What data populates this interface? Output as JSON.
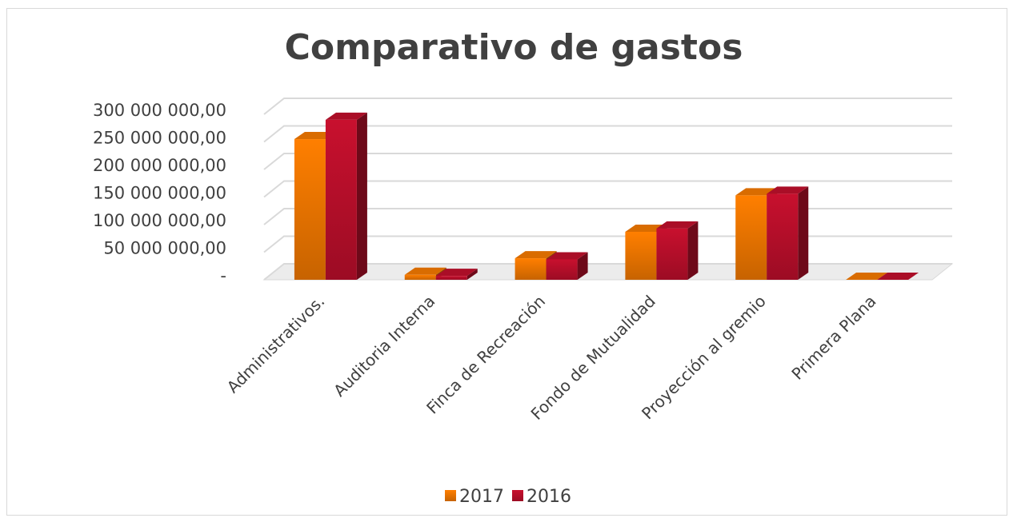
{
  "chart_data": {
    "type": "bar3d",
    "title": "Comparativo de gastos",
    "categories": [
      "Administrativos.",
      "Auditoria Interna",
      "Finca de Recreación",
      "Fondo de Mutualidad",
      "Proyección al gremio",
      "Primera Plana"
    ],
    "series": [
      {
        "name": "2017",
        "color": "#ff7f00",
        "values": [
          255000000,
          9000000,
          39000000,
          87000000,
          153000000,
          0
        ]
      },
      {
        "name": "2016",
        "color": "#c8102e",
        "values": [
          290000000,
          7000000,
          37000000,
          93000000,
          156000000,
          0
        ]
      }
    ],
    "ylim": [
      0,
      300000000
    ],
    "yticks": [
      {
        "value": 0,
        "label": "-"
      },
      {
        "value": 50000000,
        "label": "50 000 000,00"
      },
      {
        "value": 100000000,
        "label": "100 000 000,00"
      },
      {
        "value": 150000000,
        "label": "150 000 000,00"
      },
      {
        "value": 200000000,
        "label": "200 000 000,00"
      },
      {
        "value": 250000000,
        "label": "250 000 000,00"
      },
      {
        "value": 300000000,
        "label": "300 000 000,00"
      }
    ],
    "grid": true,
    "legend": "bottom"
  }
}
